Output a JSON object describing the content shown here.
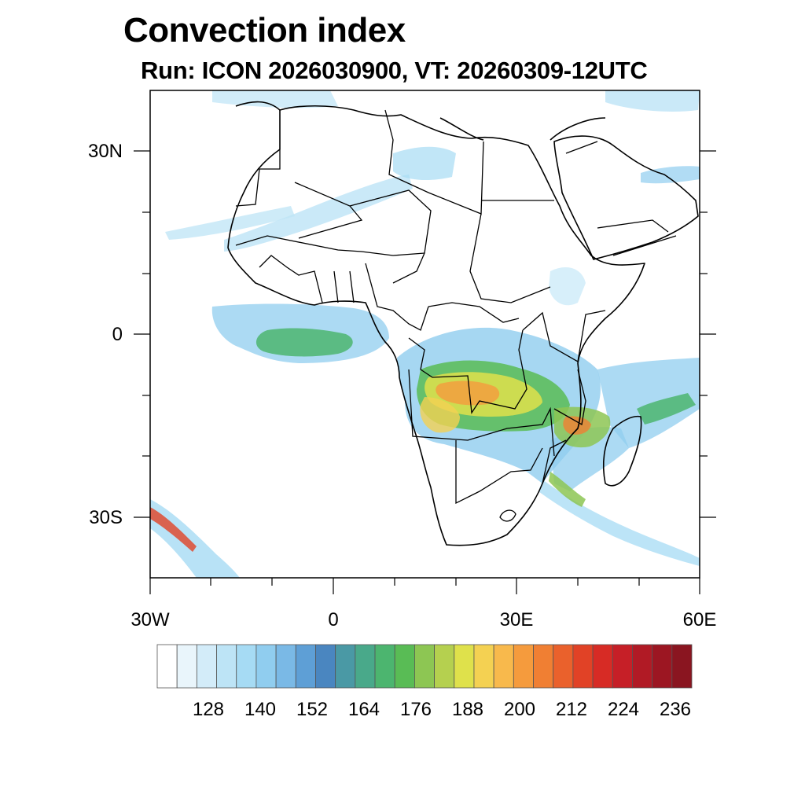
{
  "title": "Convection index",
  "subtitle": "Run: ICON 2026030900,  VT: 20260309-12UTC",
  "map": {
    "region": "Africa",
    "lon_range": [
      -30,
      60
    ],
    "lat_range": [
      -40,
      40
    ],
    "lat_tick_labels": [
      "30N",
      "0",
      "30S"
    ],
    "lon_tick_labels": [
      "30W",
      "0",
      "30E",
      "60E"
    ]
  },
  "colorbar": {
    "colors": [
      "#ffffff",
      "#e9f5fb",
      "#d3ecf9",
      "#bde4f6",
      "#a6dbf4",
      "#90cdef",
      "#7ab9e6",
      "#5e9fd6",
      "#4a86c0",
      "#4a99a5",
      "#49a98a",
      "#4cb56f",
      "#59bc55",
      "#8dc653",
      "#b5d04f",
      "#dfe14b",
      "#f4d152",
      "#f8b94c",
      "#f59b3d",
      "#f07f33",
      "#ea612c",
      "#e14226",
      "#d72b25",
      "#c61f27",
      "#b11a25",
      "#9c1622",
      "#8a1520"
    ],
    "tick_labels": [
      "128",
      "140",
      "152",
      "164",
      "176",
      "188",
      "200",
      "212",
      "224",
      "236"
    ]
  }
}
